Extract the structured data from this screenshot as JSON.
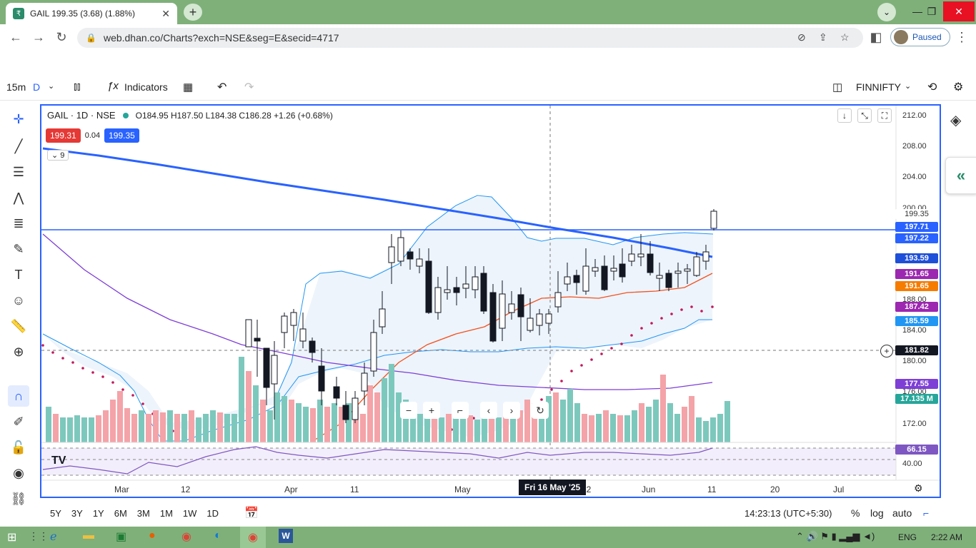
{
  "browser": {
    "tab_title": "GAIL 199.35 (3.68) (1.88%)",
    "tab_favicon": "rupee-icon",
    "url": "web.dhan.co/Charts?exch=NSE&seg=E&secid=4717",
    "profile_status": "Paused"
  },
  "toolbar": {
    "interval": "15m",
    "interval_d": "D",
    "indicators_label": "Indicators",
    "symbol": "FINNIFTY"
  },
  "legend": {
    "title": "GAIL · 1D · NSE",
    "ohlc": "O184.95  H187.50  L184.38  C186.28  +1.26 (+0.68%)",
    "bid": "199.31",
    "spread": "0.04",
    "ask": "199.35",
    "collapse_count": "9"
  },
  "y_axis": {
    "ticks": [
      "212.00",
      "208.00",
      "204.00",
      "200.00",
      "196.00",
      "188.00",
      "184.00",
      "180.00",
      "176.00",
      "172.00",
      "40.00"
    ]
  },
  "price_tags": [
    {
      "text": "199.35",
      "color": "#ffffff",
      "fg": "#333333"
    },
    {
      "text": "197.71",
      "color": "#2962ff"
    },
    {
      "text": "197.22",
      "color": "#2962ff"
    },
    {
      "text": "193.59",
      "color": "#1e4fd8"
    },
    {
      "text": "191.65",
      "color": "#9c27b0"
    },
    {
      "text": "191.65",
      "color": "#f57c00"
    },
    {
      "text": "187.42",
      "color": "#9c27b0"
    },
    {
      "text": "185.59",
      "color": "#2196f3"
    },
    {
      "text": "181.82",
      "color": "#131722"
    },
    {
      "text": "177.55",
      "color": "#7e3fd6"
    },
    {
      "text": "17.135 M",
      "color": "#26a69a"
    },
    {
      "text": "66.15",
      "color": "#7e57c2"
    }
  ],
  "x_axis": {
    "labels": [
      "Mar",
      "12",
      "Apr",
      "11",
      "May",
      "22",
      "Jun",
      "11",
      "20",
      "Jul"
    ],
    "crosshair_label": "Fri 16 May '25"
  },
  "bottom": {
    "ranges": [
      "5Y",
      "3Y",
      "1Y",
      "6M",
      "3M",
      "1M",
      "1W",
      "1D"
    ],
    "time": "14:23:13 (UTC+5:30)",
    "pct": "%",
    "log": "log",
    "auto": "auto"
  },
  "taskbar": {
    "lang": "ENG",
    "clock": "2:22 AM"
  },
  "colors": {
    "up": "#26a69a",
    "down": "#ef5350",
    "accent": "#2962ff"
  }
}
